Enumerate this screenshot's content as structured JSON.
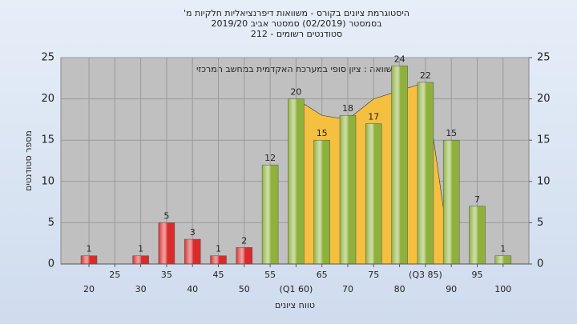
{
  "chart_data": {
    "type": "bar",
    "title": [
      "היסטוגרמת ציונים בקורס - משוואות דיפרנציאליות חלקיות מ'",
      "בסמסטר (02/2019) סמסטר אביב 2019/20",
      "סטודנטים רשומים - 212"
    ],
    "annotation": "בהשוואה : ציון סופי במערכת האקדמית במחשב המרכזי",
    "y_label": "מספר סטודנטים",
    "x_label": "טווח ציונים",
    "categories": [
      "20",
      "25",
      "30",
      "35",
      "40",
      "45",
      "50",
      "55",
      "(Q1 60)",
      "65",
      "70",
      "75",
      "80",
      "(Q3 85)",
      "90",
      "95",
      "100"
    ],
    "values": [
      1,
      null,
      1,
      5,
      3,
      1,
      2,
      12,
      20,
      15,
      18,
      17,
      24,
      22,
      15,
      7,
      1
    ],
    "colors": [
      "#d92b2b",
      "#d92b2b",
      "#d92b2b",
      "#d92b2b",
      "#d92b2b",
      "#d92b2b",
      "#d92b2b",
      "#8fb13c",
      "#8fb13c",
      "#8fb13c",
      "#8fb13c",
      "#8fb13c",
      "#8fb13c",
      "#8fb13c",
      "#8fb13c",
      "#8fb13c",
      "#8fb13c"
    ],
    "comparison": {
      "color": "#f5c040",
      "values": [
        null,
        null,
        null,
        null,
        null,
        null,
        null,
        null,
        20,
        18,
        17.5,
        20,
        21,
        22,
        0,
        null,
        null
      ]
    },
    "ylim": [
      0,
      25
    ],
    "yticks": [
      0,
      5,
      10,
      15,
      20,
      25
    ],
    "y2lim": [
      0,
      25
    ],
    "y2ticks": [
      0,
      5,
      10,
      15,
      20,
      25
    ],
    "grid": true
  }
}
